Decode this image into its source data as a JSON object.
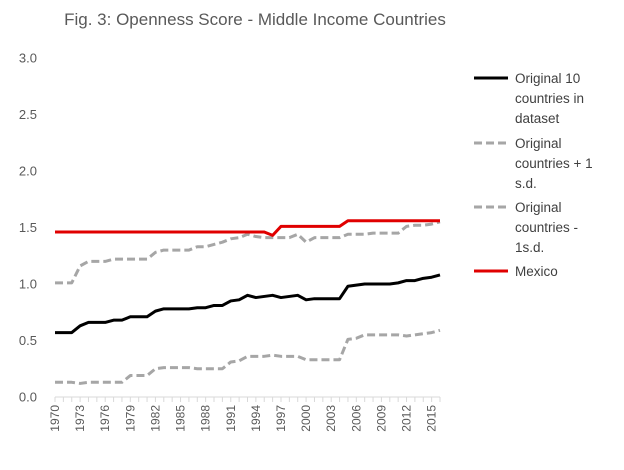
{
  "chart_data": {
    "type": "line",
    "title": "Fig. 3: Openness Score - Middle Income Countries",
    "xlabel": "",
    "ylabel": "",
    "ylim": [
      0,
      3
    ],
    "yticks": [
      "0.0",
      "0.5",
      "1.0",
      "1.5",
      "2.0",
      "2.5",
      "3.0"
    ],
    "xticks": [
      "1970",
      "1973",
      "1976",
      "1979",
      "1982",
      "1985",
      "1988",
      "1991",
      "1994",
      "1997",
      "2000",
      "2003",
      "2006",
      "2009",
      "2012",
      "2015"
    ],
    "grid": false,
    "legend_position": "right",
    "x": [
      1970,
      1971,
      1972,
      1973,
      1974,
      1975,
      1976,
      1977,
      1978,
      1979,
      1980,
      1981,
      1982,
      1983,
      1984,
      1985,
      1986,
      1987,
      1988,
      1989,
      1990,
      1991,
      1992,
      1993,
      1994,
      1995,
      1996,
      1997,
      1998,
      1999,
      2000,
      2001,
      2002,
      2003,
      2004,
      2005,
      2006,
      2007,
      2008,
      2009,
      2010,
      2011,
      2012,
      2013,
      2014,
      2015,
      2016
    ],
    "series": [
      {
        "name": "Original 10 countries in dataset",
        "legend_lines": [
          "Original 10",
          "countries in",
          "dataset"
        ],
        "color": "#000000",
        "dash": "solid",
        "values": [
          0.57,
          0.57,
          0.57,
          0.63,
          0.66,
          0.66,
          0.66,
          0.68,
          0.68,
          0.71,
          0.71,
          0.71,
          0.76,
          0.78,
          0.78,
          0.78,
          0.78,
          0.79,
          0.79,
          0.81,
          0.81,
          0.85,
          0.86,
          0.9,
          0.88,
          0.89,
          0.9,
          0.88,
          0.89,
          0.9,
          0.86,
          0.87,
          0.87,
          0.87,
          0.87,
          0.98,
          0.99,
          1.0,
          1.0,
          1.0,
          1.0,
          1.01,
          1.03,
          1.03,
          1.05,
          1.06,
          1.08
        ]
      },
      {
        "name": "Original countries + 1 s.d.",
        "legend_lines": [
          "Original",
          "countries + 1",
          "s.d."
        ],
        "color": "#a6a6a6",
        "dash": "dashed",
        "values": [
          1.01,
          1.01,
          1.01,
          1.16,
          1.2,
          1.2,
          1.2,
          1.22,
          1.22,
          1.22,
          1.22,
          1.22,
          1.28,
          1.3,
          1.3,
          1.3,
          1.3,
          1.33,
          1.33,
          1.35,
          1.37,
          1.4,
          1.41,
          1.44,
          1.42,
          1.41,
          1.41,
          1.41,
          1.41,
          1.44,
          1.37,
          1.41,
          1.41,
          1.41,
          1.41,
          1.44,
          1.44,
          1.44,
          1.45,
          1.45,
          1.45,
          1.45,
          1.51,
          1.52,
          1.52,
          1.53,
          1.55
        ]
      },
      {
        "name": "Original countries - 1s.d.",
        "legend_lines": [
          "Original",
          "countries -",
          "1s.d."
        ],
        "color": "#a6a6a6",
        "dash": "dashed",
        "values": [
          0.13,
          0.13,
          0.13,
          0.12,
          0.13,
          0.13,
          0.13,
          0.13,
          0.13,
          0.19,
          0.19,
          0.19,
          0.25,
          0.26,
          0.26,
          0.26,
          0.26,
          0.25,
          0.25,
          0.25,
          0.25,
          0.31,
          0.32,
          0.36,
          0.36,
          0.36,
          0.37,
          0.36,
          0.36,
          0.36,
          0.33,
          0.33,
          0.33,
          0.33,
          0.33,
          0.51,
          0.52,
          0.55,
          0.55,
          0.55,
          0.55,
          0.55,
          0.54,
          0.55,
          0.56,
          0.57,
          0.59
        ]
      },
      {
        "name": "Mexico",
        "legend_lines": [
          "Mexico"
        ],
        "color": "#e00000",
        "dash": "solid",
        "values": [
          1.46,
          1.46,
          1.46,
          1.46,
          1.46,
          1.46,
          1.46,
          1.46,
          1.46,
          1.46,
          1.46,
          1.46,
          1.46,
          1.46,
          1.46,
          1.46,
          1.46,
          1.46,
          1.46,
          1.46,
          1.46,
          1.46,
          1.46,
          1.46,
          1.46,
          1.46,
          1.43,
          1.51,
          1.51,
          1.51,
          1.51,
          1.51,
          1.51,
          1.51,
          1.51,
          1.56,
          1.56,
          1.56,
          1.56,
          1.56,
          1.56,
          1.56,
          1.56,
          1.56,
          1.56,
          1.56,
          1.56
        ]
      }
    ]
  }
}
